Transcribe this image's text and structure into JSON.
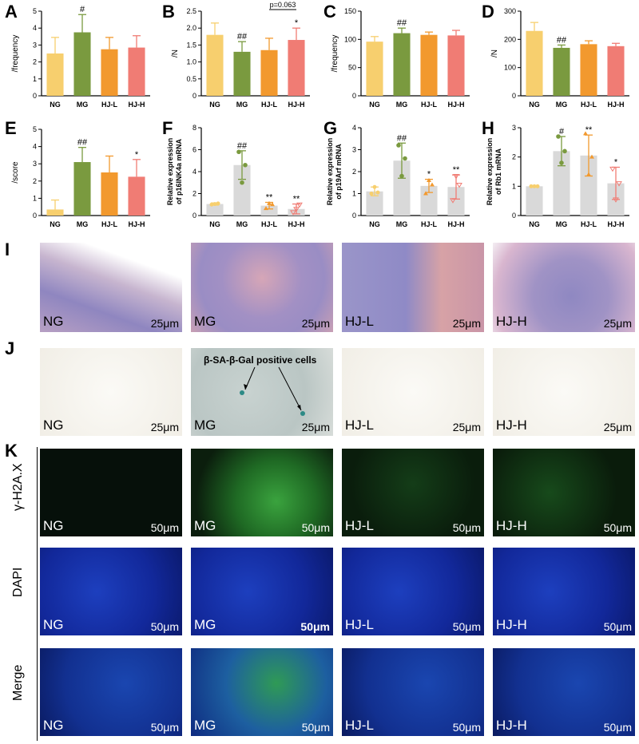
{
  "panels": {
    "A": "A",
    "B": "B",
    "C": "C",
    "D": "D",
    "E": "E",
    "F": "F",
    "G": "G",
    "H": "H",
    "I": "I",
    "J": "J",
    "K": "K"
  },
  "groups": [
    "NG",
    "MG",
    "HJ-L",
    "HJ-H"
  ],
  "scale_bar_25": "25μm",
  "scale_bar_50": "50μm",
  "sa_annotation": "β-SA-β-Gal positive cells",
  "if_rows": [
    "γ-H2A.X",
    "DAPI",
    "Merge"
  ],
  "colors": {
    "NG": "#f7cf6e",
    "MG": "#7a9a3f",
    "HJ-L": "#f2992e",
    "HJ-H": "#f07c74",
    "qpcr_bar": "#d9d9d9"
  },
  "chart_data": [
    {
      "id": "A",
      "type": "bar",
      "ylabel": "/frequency",
      "categories": [
        "NG",
        "MG",
        "HJ-L",
        "HJ-H"
      ],
      "values": [
        2.5,
        3.75,
        2.75,
        2.85
      ],
      "errors": [
        0.95,
        1.05,
        0.7,
        0.7
      ],
      "ylim": [
        0,
        5
      ],
      "yticks": [
        0,
        1,
        2,
        3,
        4,
        5
      ],
      "annotations": [
        "",
        "#",
        "",
        ""
      ]
    },
    {
      "id": "B",
      "type": "bar",
      "ylabel": "/N",
      "categories": [
        "NG",
        "MG",
        "HJ-L",
        "HJ-H"
      ],
      "values": [
        1.8,
        1.3,
        1.35,
        1.65
      ],
      "errors": [
        0.35,
        0.3,
        0.35,
        0.35
      ],
      "ylim": [
        0,
        2.5
      ],
      "yticks": [
        0,
        0.5,
        1.0,
        1.5,
        2.0,
        2.5
      ],
      "annotations": [
        "",
        "##",
        "",
        "*"
      ],
      "bracket": {
        "from": 2,
        "to": 3,
        "label": "p=0.063"
      }
    },
    {
      "id": "C",
      "type": "bar",
      "ylabel": "/frequency",
      "categories": [
        "NG",
        "MG",
        "HJ-L",
        "HJ-H"
      ],
      "values": [
        96,
        111,
        108,
        107
      ],
      "errors": [
        9,
        9,
        5,
        9
      ],
      "ylim": [
        0,
        150
      ],
      "yticks": [
        0,
        50,
        100,
        150
      ],
      "annotations": [
        "",
        "##",
        "",
        ""
      ]
    },
    {
      "id": "D",
      "type": "bar",
      "ylabel": "/N",
      "categories": [
        "NG",
        "MG",
        "HJ-L",
        "HJ-H"
      ],
      "values": [
        230,
        170,
        183,
        176
      ],
      "errors": [
        30,
        10,
        12,
        10
      ],
      "ylim": [
        0,
        300
      ],
      "yticks": [
        0,
        100,
        200,
        300
      ],
      "annotations": [
        "",
        "##",
        "",
        ""
      ]
    },
    {
      "id": "E",
      "type": "bar",
      "ylabel": "/score",
      "categories": [
        "NG",
        "MG",
        "HJ-L",
        "HJ-H"
      ],
      "values": [
        0.35,
        3.1,
        2.5,
        2.25
      ],
      "errors": [
        0.55,
        0.85,
        0.95,
        1.0
      ],
      "ylim": [
        0,
        5
      ],
      "yticks": [
        0,
        1,
        2,
        3,
        4,
        5
      ],
      "annotations": [
        "",
        "##",
        "",
        "*"
      ]
    },
    {
      "id": "F",
      "type": "bar-dot",
      "ylabel_lines": [
        "Relative expression",
        "of p16INK4a mRNA"
      ],
      "categories": [
        "NG",
        "MG",
        "HJ-L",
        "HJ-H"
      ],
      "values": [
        1.05,
        4.6,
        0.9,
        0.6
      ],
      "errors": [
        0.1,
        1.3,
        0.3,
        0.45
      ],
      "points": [
        [
          1.0,
          1.05,
          1.1
        ],
        [
          5.8,
          3.0,
          4.6
        ],
        [
          0.65,
          1.1,
          1.0
        ],
        [
          0.3,
          0.6,
          1.0
        ]
      ],
      "ylim": [
        0,
        8
      ],
      "yticks": [
        0,
        2,
        4,
        6,
        8
      ],
      "annotations": [
        "",
        "##",
        "**",
        "**"
      ]
    },
    {
      "id": "G",
      "type": "bar-dot",
      "ylabel_lines": [
        "Relative expression",
        "of p19Arf mRNA"
      ],
      "categories": [
        "NG",
        "MG",
        "HJ-L",
        "HJ-H"
      ],
      "values": [
        1.1,
        2.5,
        1.35,
        1.3
      ],
      "errors": [
        0.2,
        0.8,
        0.3,
        0.55
      ],
      "points": [
        [
          1.0,
          1.3,
          1.05
        ],
        [
          3.2,
          1.8,
          2.6
        ],
        [
          1.0,
          1.6,
          1.4
        ],
        [
          0.7,
          1.8,
          1.4
        ]
      ],
      "ylim": [
        0,
        4
      ],
      "yticks": [
        0,
        1,
        2,
        3,
        4
      ],
      "annotations": [
        "",
        "##",
        "*",
        "**"
      ]
    },
    {
      "id": "H",
      "type": "bar-dot",
      "ylabel_lines": [
        "Relative expression",
        "of Rb1 mRNA"
      ],
      "categories": [
        "NG",
        "MG",
        "HJ-L",
        "HJ-H"
      ],
      "values": [
        1.0,
        2.2,
        2.05,
        1.1
      ],
      "errors": [
        0.02,
        0.5,
        0.7,
        0.55
      ],
      "points": [
        [
          1.0,
          1.0,
          1.0
        ],
        [
          2.7,
          1.8,
          2.2
        ],
        [
          2.8,
          1.4,
          2.0
        ],
        [
          1.6,
          0.55,
          1.1
        ]
      ],
      "ylim": [
        0,
        3
      ],
      "yticks": [
        0,
        1,
        2,
        3
      ],
      "annotations": [
        "",
        "#",
        "**",
        "*"
      ]
    }
  ]
}
